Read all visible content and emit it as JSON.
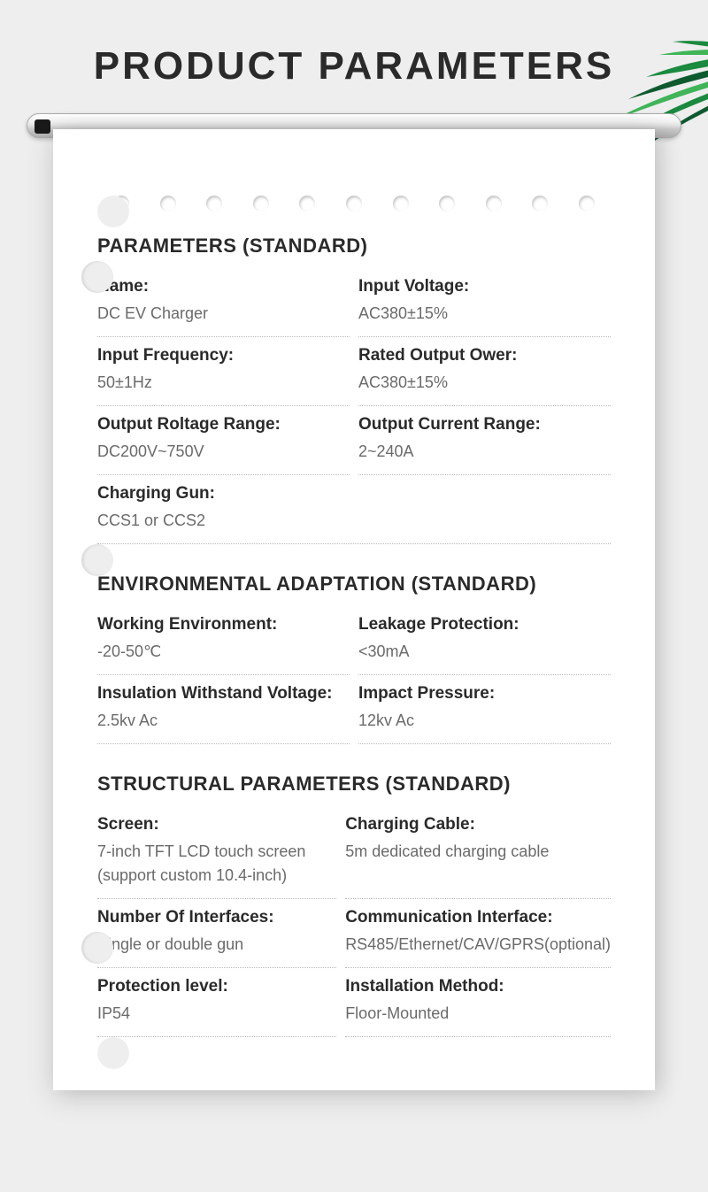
{
  "page_title": "PRODUCT  PARAMETERS",
  "colors": {
    "background": "#eeeeee",
    "card_bg": "#ffffff",
    "title_color": "#2a2a2a",
    "label_color": "#2a2a2a",
    "value_color": "#6a6a6a",
    "divider_color": "#b8b8b8",
    "palm_green_dark": "#0e5a2f",
    "palm_green_mid": "#1a8a3f",
    "palm_green_light": "#3fb557"
  },
  "typography": {
    "title_fontsize": 44,
    "section_title_fontsize": 22,
    "label_fontsize": 19,
    "value_fontsize": 18
  },
  "perforation_count": 11,
  "sections": [
    {
      "title": "PARAMETERS (STANDARD)",
      "rows": [
        {
          "label": "Name:",
          "value": "DC EV Charger",
          "span": 1
        },
        {
          "label": "Input Voltage:",
          "value": "AC380±15%",
          "span": 1
        },
        {
          "label": "Input Frequency:",
          "value": "50±1Hz",
          "span": 1
        },
        {
          "label": "Rated Output Ower:",
          "value": "AC380±15%",
          "span": 1
        },
        {
          "label": "Output Roltage Range:",
          "value": "DC200V~750V",
          "span": 1
        },
        {
          "label": "Output Current Range:",
          "value": "2~240A",
          "span": 1
        },
        {
          "label": "Charging Gun:",
          "value": "CCS1 or CCS2",
          "span": 2
        }
      ]
    },
    {
      "title": "ENVIRONMENTAL ADAPTATION  (STANDARD)",
      "rows": [
        {
          "label": "Working Environment:",
          "value": "-20-50℃",
          "span": 1
        },
        {
          "label": "Leakage Protection:",
          "value": "<30mA",
          "span": 1
        },
        {
          "label": "Insulation Withstand Voltage:",
          "value": "2.5kv Ac",
          "span": 1
        },
        {
          "label": "Impact Pressure:",
          "value": "12kv Ac",
          "span": 1
        }
      ]
    },
    {
      "title": "STRUCTURAL PARAMETERS   (STANDARD)",
      "rows": [
        {
          "label": "Screen:",
          "value": "7-inch TFT LCD touch screen (support custom 10.4-inch)",
          "span": 1
        },
        {
          "label": "Charging Cable:",
          "value": "5m dedicated charging cable",
          "span": 1
        },
        {
          "label": "Number Of Interfaces:",
          "value": "Single or double gun",
          "span": 1
        },
        {
          "label": "Communication Interface:",
          "value": "RS485/Ethernet/CAV/GPRS(optional)",
          "span": 1
        },
        {
          "label": "Protection level:",
          "value": "IP54",
          "span": 1
        },
        {
          "label": "Installation Method:",
          "value": "Floor-Mounted",
          "span": 1
        }
      ]
    }
  ]
}
